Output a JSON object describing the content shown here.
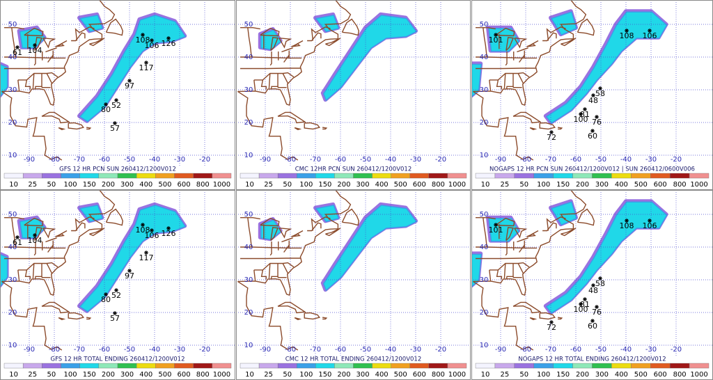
{
  "lat_labels": [
    50,
    40,
    30,
    20,
    10
  ],
  "lon_labels": [
    -90,
    -80,
    -70,
    -60,
    -50,
    -40,
    -30,
    -20
  ],
  "colorbar": {
    "labels": [
      10,
      25,
      50,
      100,
      150,
      200,
      300,
      400,
      500,
      600,
      800,
      1000
    ],
    "colors": [
      "#f4f4ff",
      "#c8a8ec",
      "#9a72e0",
      "#3aa0e8",
      "#20d8e8",
      "#8ee8b8",
      "#30c050",
      "#ecdc10",
      "#f0a020",
      "#e05a20",
      "#a01818",
      "#f09090"
    ]
  },
  "panels": [
    {
      "caption": "GFS 12 HR PCN SUN 260412/1200V012",
      "points": [
        61,
        104,
        108,
        106,
        126,
        117,
        97,
        52,
        80,
        57
      ]
    },
    {
      "caption": "CMC 12HR PCN SUN 260412/1200V012"
    },
    {
      "caption": "NOGAPS 12 HR PCN SUN 260412/1200V012 | SUN 260412/0600V006",
      "points": [
        101,
        108,
        106,
        58,
        48,
        81,
        100,
        76,
        60,
        72
      ]
    },
    {
      "caption": "GFS 12 HR TOTAL ENDING 260412/1200V012",
      "points": [
        61,
        104,
        108,
        106,
        126,
        117,
        97,
        52,
        80,
        57
      ]
    },
    {
      "caption": "CMC 12 HR TOTAL ENDING 260412/1200V012"
    },
    {
      "caption": "NOGAPS 12 HR TOTAL ENDING 260412/1200V012",
      "points": [
        101,
        108,
        106,
        58,
        48,
        81,
        100,
        76,
        60,
        72
      ]
    }
  ]
}
